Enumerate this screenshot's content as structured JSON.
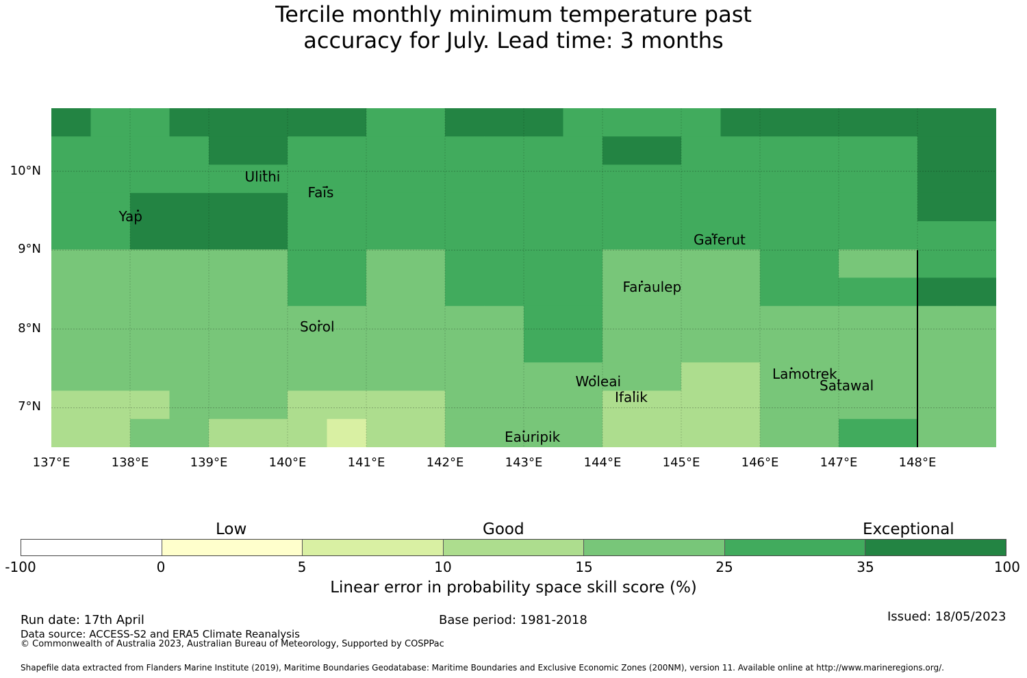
{
  "title": {
    "line1": "Tercile monthly minimum temperature past",
    "line2": "accuracy for July. Lead time: 3 months"
  },
  "map": {
    "lat_labels": [
      "10°N",
      "9°N",
      "8°N",
      "7°N"
    ],
    "lon_labels": [
      "137°E",
      "138°E",
      "139°E",
      "140°E",
      "141°E",
      "142°E",
      "143°E",
      "144°E",
      "145°E",
      "146°E",
      "147°E",
      "148°E"
    ],
    "extent": {
      "lon_min": 137.0,
      "lon_max": 149.0,
      "lat_min": 6.5,
      "lat_max": 10.8
    },
    "places": [
      {
        "name": "Ulithi",
        "lon": 139.7,
        "lat": 10.0
      },
      {
        "name": "Faīs",
        "lon": 140.5,
        "lat": 9.8
      },
      {
        "name": "Yap",
        "lon": 138.1,
        "lat": 9.5
      },
      {
        "name": "Gaferut",
        "lon": 145.4,
        "lat": 9.2
      },
      {
        "name": "Faraulep",
        "lon": 144.5,
        "lat": 8.6
      },
      {
        "name": "Sorol",
        "lon": 140.4,
        "lat": 8.1
      },
      {
        "name": "Woleai",
        "lon": 143.9,
        "lat": 7.4
      },
      {
        "name": "Ifalik",
        "lon": 144.4,
        "lat": 7.2
      },
      {
        "name": "Lamotrek",
        "lon": 146.4,
        "lat": 7.5
      },
      {
        "name": "Satawal",
        "lon": 147.0,
        "lat": 7.35
      },
      {
        "name": "Eauripik",
        "lon": 143.0,
        "lat": 6.7
      }
    ],
    "grid_skill_classes": [
      [
        6,
        5,
        5,
        6,
        6,
        6,
        6,
        6,
        5,
        5,
        6,
        6,
        6,
        5,
        5,
        5,
        5,
        6,
        6,
        6,
        6,
        6,
        6,
        6
      ],
      [
        5,
        5,
        5,
        5,
        6,
        6,
        5,
        5,
        5,
        5,
        5,
        5,
        5,
        5,
        6,
        6,
        5,
        5,
        5,
        5,
        5,
        5,
        6,
        6
      ],
      [
        5,
        5,
        5,
        5,
        5,
        5,
        5,
        5,
        5,
        5,
        5,
        5,
        5,
        5,
        5,
        5,
        5,
        5,
        5,
        5,
        5,
        5,
        6,
        6
      ],
      [
        5,
        5,
        6,
        6,
        6,
        6,
        5,
        5,
        5,
        5,
        5,
        5,
        5,
        5,
        5,
        5,
        5,
        5,
        5,
        5,
        5,
        5,
        6,
        6
      ],
      [
        5,
        5,
        6,
        6,
        6,
        6,
        5,
        5,
        5,
        5,
        5,
        5,
        5,
        5,
        5,
        5,
        5,
        5,
        5,
        5,
        5,
        5,
        5,
        5
      ],
      [
        4,
        4,
        4,
        4,
        4,
        4,
        5,
        5,
        4,
        4,
        5,
        5,
        5,
        5,
        4,
        4,
        4,
        4,
        5,
        5,
        4,
        4,
        5,
        5
      ],
      [
        4,
        4,
        4,
        4,
        4,
        4,
        5,
        5,
        4,
        4,
        5,
        5,
        5,
        5,
        4,
        4,
        4,
        4,
        5,
        5,
        5,
        5,
        6,
        6
      ],
      [
        4,
        4,
        4,
        4,
        4,
        4,
        4,
        4,
        4,
        4,
        4,
        4,
        5,
        5,
        4,
        4,
        4,
        4,
        4,
        4,
        4,
        4,
        4,
        4
      ],
      [
        4,
        4,
        4,
        4,
        4,
        4,
        4,
        4,
        4,
        4,
        4,
        4,
        5,
        5,
        4,
        4,
        4,
        4,
        4,
        4,
        4,
        4,
        4,
        4
      ],
      [
        4,
        4,
        4,
        4,
        4,
        4,
        4,
        4,
        4,
        4,
        4,
        4,
        4,
        4,
        4,
        4,
        3,
        3,
        4,
        4,
        4,
        4,
        4,
        4
      ],
      [
        3,
        3,
        3,
        4,
        4,
        4,
        3,
        3,
        3,
        3,
        4,
        4,
        4,
        4,
        3,
        3,
        3,
        3,
        4,
        4,
        4,
        4,
        4,
        4
      ],
      [
        3,
        3,
        4,
        4,
        3,
        3,
        3,
        2,
        3,
        3,
        4,
        4,
        4,
        4,
        3,
        3,
        3,
        3,
        4,
        4,
        5,
        5,
        4,
        4
      ]
    ],
    "eez_boundary_lon": 148.0
  },
  "colorbar": {
    "categories": [
      "Low",
      "Good",
      "Exceptional"
    ],
    "ticks": [
      "-100",
      "0",
      "5",
      "10",
      "15",
      "25",
      "35",
      "100"
    ],
    "colors": [
      "#ffffff",
      "#ffffcc",
      "#d9f0a3",
      "#addd8e",
      "#78c679",
      "#41ab5d",
      "#238443"
    ],
    "label": "Linear error in probability space skill score (%)"
  },
  "footer": {
    "run_date": "Run date: 17th April",
    "base_period": "Base period: 1981-2018",
    "issued": "Issued: 18/05/2023",
    "data_source": "Data source: ACCESS-S2 and ERA5 Climate Reanalysis",
    "copyright": "© Commonwealth of Australia 2023, Australian Bureau of Meteorology, Supported by COSPPac",
    "shapefile": "Shapefile data extracted from Flanders Marine Institute (2019), Maritime Boundaries Geodatabase: Maritime Boundaries and Exclusive Economic Zones (200NM), version 11. Available online at http://www.marineregions.org/."
  }
}
